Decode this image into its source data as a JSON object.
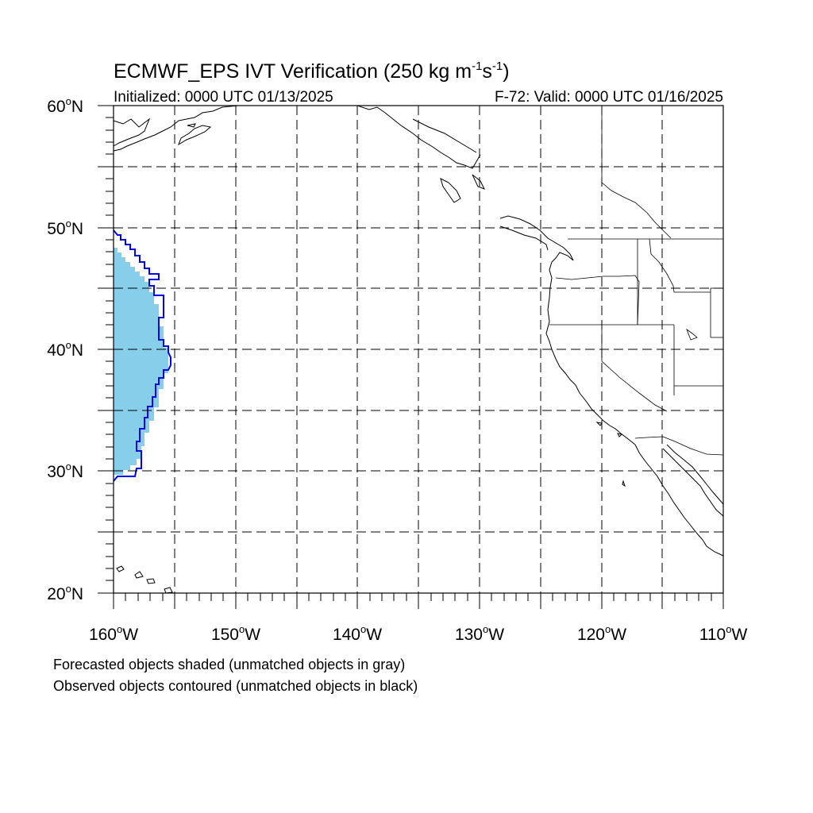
{
  "title": {
    "main": "ECMWF_EPS IVT Verification (250 kg m",
    "sup1": "-1",
    "mid": "s",
    "sup2": "-1",
    "end": ")"
  },
  "initialized": "Initialized: 0000 UTC 01/13/2025",
  "valid": "F-72: Valid: 0000 UTC 01/16/2025",
  "lat_labels": [
    "60",
    "50",
    "40",
    "30",
    "20"
  ],
  "lon_labels": [
    "160",
    "150",
    "140",
    "130",
    "120",
    "110"
  ],
  "lat_suffix": "N",
  "lon_suffix": "W",
  "degree": "o",
  "notes": [
    "Forecasted objects shaded (unmatched objects in gray)",
    "Observed objects contoured (unmatched objects in black)"
  ],
  "colors": {
    "forecast_fill": "#87ceeb",
    "observed_contour": "#0000ff",
    "coast": "#000000"
  },
  "map": {
    "lon_range": [
      -160,
      -110
    ],
    "lat_range": [
      20,
      60
    ]
  }
}
